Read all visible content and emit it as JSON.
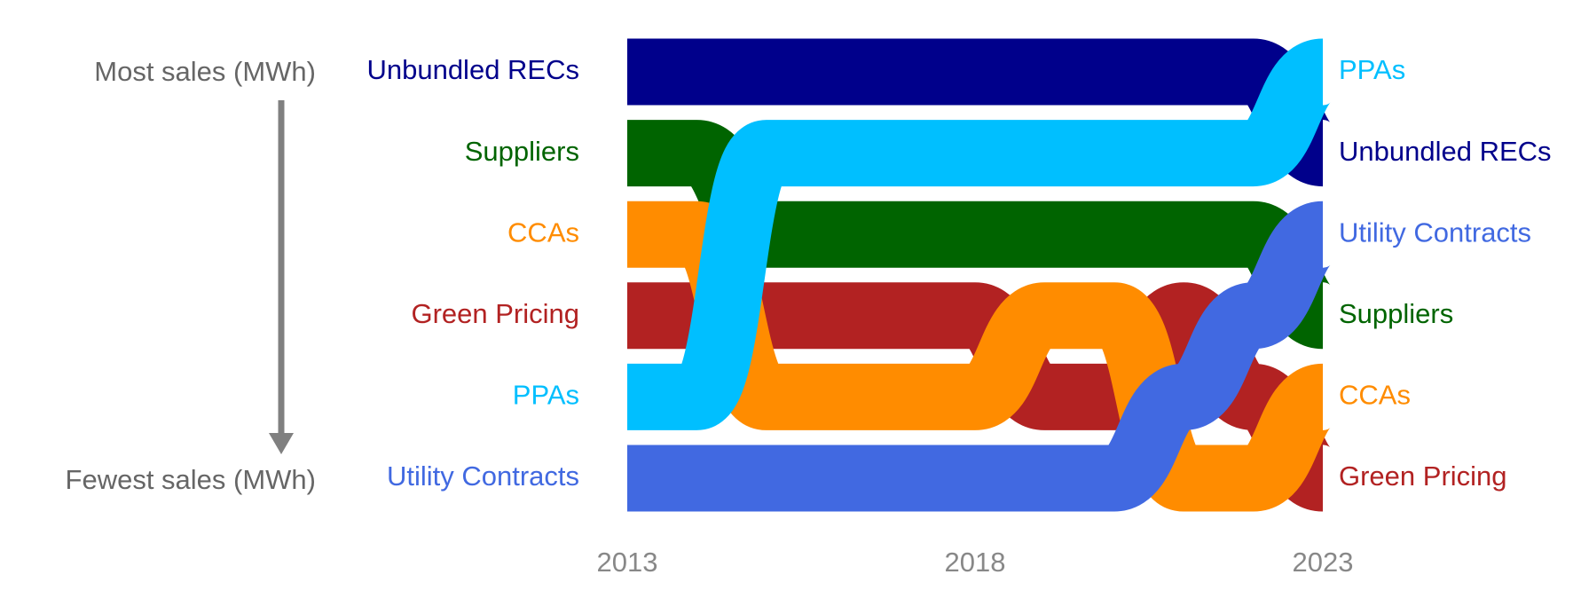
{
  "chart_data": {
    "type": "bump",
    "y_label_top": "Most sales (MWh)",
    "y_label_bottom": "Fewest sales (MWh)",
    "x": [
      2013,
      2014,
      2015,
      2016,
      2017,
      2018,
      2019,
      2020,
      2021,
      2022,
      2023
    ],
    "xticks": [
      2013,
      2018,
      2023
    ],
    "series": [
      {
        "name": "Unbundled RECs",
        "color": "#00008b",
        "values": [
          1,
          1,
          1,
          1,
          1,
          1,
          1,
          1,
          1,
          1,
          2
        ]
      },
      {
        "name": "Suppliers",
        "color": "#006400",
        "values": [
          2,
          2,
          3,
          3,
          3,
          3,
          3,
          3,
          3,
          3,
          4
        ]
      },
      {
        "name": "Green Pricing",
        "color": "#b22222",
        "values": [
          4,
          4,
          4,
          4,
          4,
          4,
          5,
          5,
          4,
          5,
          6
        ]
      },
      {
        "name": "CCAs",
        "color": "#ff8c00",
        "values": [
          3,
          3,
          5,
          5,
          5,
          5,
          4,
          4,
          6,
          6,
          5
        ]
      },
      {
        "name": "Utility Contracts",
        "color": "#4169e1",
        "values": [
          6,
          6,
          6,
          6,
          6,
          6,
          6,
          6,
          5,
          4,
          3
        ]
      },
      {
        "name": "PPAs",
        "color": "#00bfff",
        "values": [
          5,
          5,
          2,
          2,
          2,
          2,
          2,
          2,
          2,
          2,
          1
        ]
      }
    ]
  }
}
